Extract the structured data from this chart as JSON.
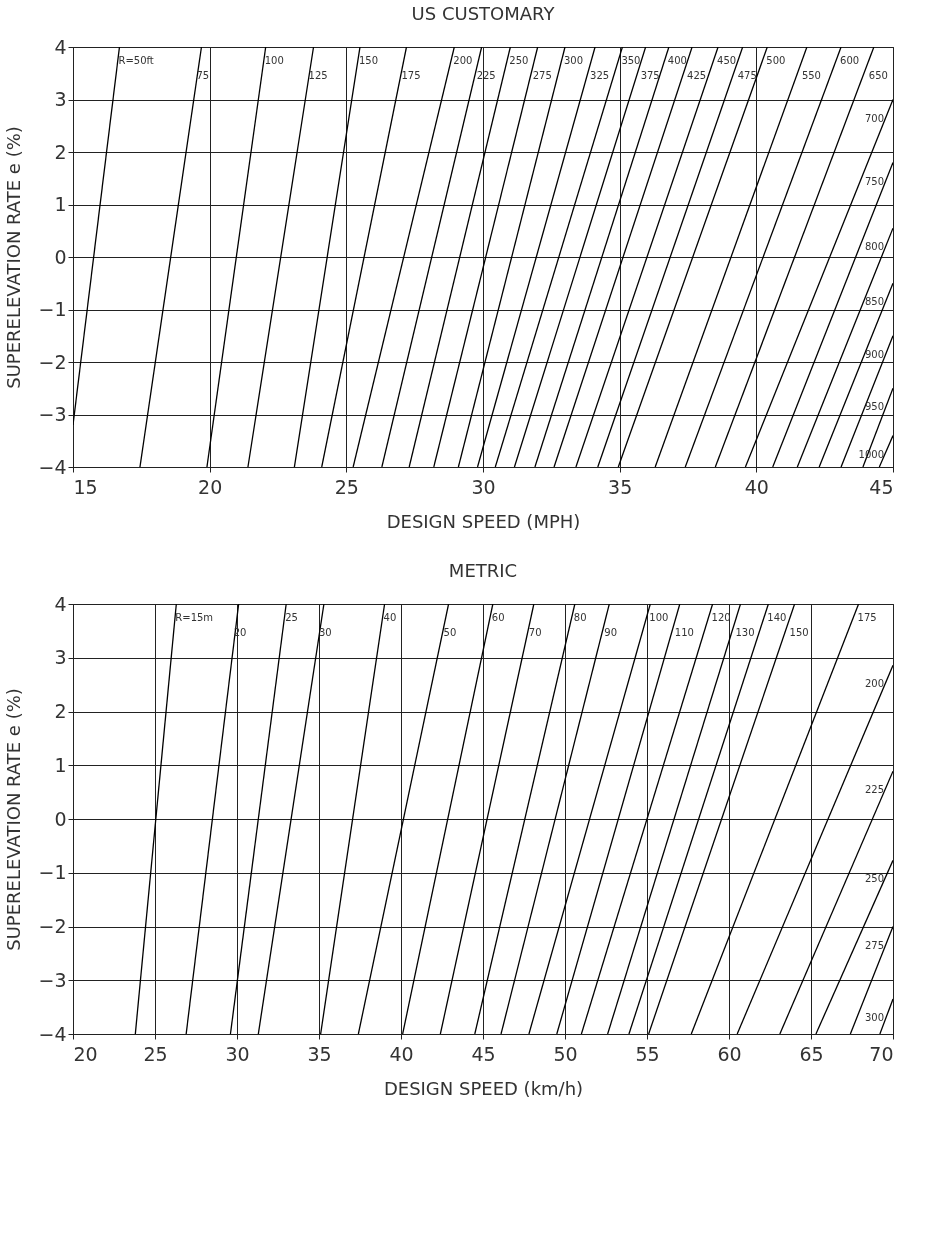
{
  "chart_data": [
    {
      "type": "line",
      "title": "US CUSTOMARY",
      "xlabel": "DESIGN SPEED (MPH)",
      "ylabel": "SUPERELEVATION RATE e (%)",
      "xlim": [
        15,
        45
      ],
      "ylim": [
        -4,
        4
      ],
      "xticks": [
        15,
        20,
        25,
        30,
        35,
        40,
        45
      ],
      "yticks": [
        -4,
        -3,
        -2,
        -1,
        0,
        1,
        2,
        3,
        4
      ],
      "grid": true,
      "legend": false,
      "marker": "none",
      "line_style": "solid",
      "series": [
        {
          "name": "R=50ft",
          "color": "#000000",
          "x": [
            15,
            16.7
          ],
          "values": [
            -3.2,
            4
          ]
        },
        {
          "name": "75",
          "color": "#000000",
          "x": [
            17.45,
            19.7
          ],
          "values": [
            -4,
            4
          ]
        },
        {
          "name": "100",
          "color": "#000000",
          "x": [
            19.9,
            22.05
          ],
          "values": [
            -4,
            4
          ]
        },
        {
          "name": "125",
          "color": "#000000",
          "x": [
            21.4,
            23.8
          ],
          "values": [
            -4,
            4
          ]
        },
        {
          "name": "150",
          "color": "#000000",
          "x": [
            23.1,
            25.5
          ],
          "values": [
            -4,
            4
          ]
        },
        {
          "name": "175",
          "color": "#000000",
          "x": [
            24.1,
            27.2
          ],
          "values": [
            -4,
            4
          ]
        },
        {
          "name": "200",
          "color": "#000000",
          "x": [
            25.25,
            28.95
          ],
          "values": [
            -4,
            4
          ]
        },
        {
          "name": "225",
          "color": "#000000",
          "x": [
            26.3,
            29.95
          ],
          "values": [
            -4,
            4
          ]
        },
        {
          "name": "250",
          "color": "#000000",
          "x": [
            27.3,
            31.0
          ],
          "values": [
            -4,
            4
          ]
        },
        {
          "name": "275",
          "color": "#000000",
          "x": [
            28.2,
            32.0
          ],
          "values": [
            -4,
            4
          ]
        },
        {
          "name": "300",
          "color": "#000000",
          "x": [
            29.1,
            33.0
          ],
          "values": [
            -4,
            4
          ]
        },
        {
          "name": "325",
          "color": "#000000",
          "x": [
            29.8,
            34.1
          ],
          "values": [
            -4,
            4
          ]
        },
        {
          "name": "350",
          "color": "#000000",
          "x": [
            30.45,
            35.1
          ],
          "values": [
            -4,
            4
          ]
        },
        {
          "name": "375",
          "color": "#000000",
          "x": [
            31.15,
            35.95
          ],
          "values": [
            -4,
            4
          ]
        },
        {
          "name": "400",
          "color": "#000000",
          "x": [
            31.9,
            36.8
          ],
          "values": [
            -4,
            4
          ]
        },
        {
          "name": "425",
          "color": "#000000",
          "x": [
            32.6,
            37.65
          ],
          "values": [
            -4,
            4
          ]
        },
        {
          "name": "450",
          "color": "#000000",
          "x": [
            33.4,
            38.6
          ],
          "values": [
            -4,
            4
          ]
        },
        {
          "name": "475",
          "color": "#000000",
          "x": [
            34.2,
            39.5
          ],
          "values": [
            -4,
            4
          ]
        },
        {
          "name": "500",
          "color": "#000000",
          "x": [
            34.95,
            40.4
          ],
          "values": [
            -4,
            4
          ]
        },
        {
          "name": "550",
          "color": "#000000",
          "x": [
            36.3,
            41.85
          ],
          "values": [
            -4,
            4
          ]
        },
        {
          "name": "600",
          "color": "#000000",
          "x": [
            37.4,
            43.1
          ],
          "values": [
            -4,
            4
          ]
        },
        {
          "name": "650",
          "color": "#000000",
          "x": [
            38.5,
            44.3
          ],
          "values": [
            -4,
            4
          ]
        },
        {
          "name": "700",
          "color": "#000000",
          "x": [
            39.6,
            45
          ],
          "values": [
            -4,
            3.0
          ]
        },
        {
          "name": "750",
          "color": "#000000",
          "x": [
            40.6,
            45
          ],
          "values": [
            -4,
            1.8
          ]
        },
        {
          "name": "800",
          "color": "#000000",
          "x": [
            41.5,
            45
          ],
          "values": [
            -4,
            0.55
          ]
        },
        {
          "name": "850",
          "color": "#000000",
          "x": [
            42.3,
            45
          ],
          "values": [
            -4,
            -0.5
          ]
        },
        {
          "name": "900",
          "color": "#000000",
          "x": [
            43.1,
            45
          ],
          "values": [
            -4,
            -1.5
          ]
        },
        {
          "name": "950",
          "color": "#000000",
          "x": [
            43.9,
            45
          ],
          "values": [
            -4,
            -2.5
          ]
        },
        {
          "name": "1000",
          "color": "#000000",
          "x": [
            44.5,
            45
          ],
          "values": [
            -4,
            -3.4
          ]
        }
      ]
    },
    {
      "type": "line",
      "title": "METRIC",
      "xlabel": "DESIGN SPEED (km/h)",
      "ylabel": "SUPERELEVATION RATE e (%)",
      "xlim": [
        20,
        70
      ],
      "ylim": [
        -4,
        4
      ],
      "xticks": [
        20,
        25,
        30,
        35,
        40,
        45,
        50,
        55,
        60,
        65,
        70
      ],
      "yticks": [
        -4,
        -3,
        -2,
        -1,
        0,
        1,
        2,
        3,
        4
      ],
      "grid": true,
      "legend": false,
      "marker": "none",
      "line_style": "solid",
      "series": [
        {
          "name": "R=15m",
          "color": "#000000",
          "x": [
            23.8,
            26.3
          ],
          "values": [
            -4,
            4
          ]
        },
        {
          "name": "20",
          "color": "#000000",
          "x": [
            26.9,
            30.1
          ],
          "values": [
            -4,
            4
          ]
        },
        {
          "name": "25",
          "color": "#000000",
          "x": [
            29.6,
            33.0
          ],
          "values": [
            -4,
            4
          ]
        },
        {
          "name": "30",
          "color": "#000000",
          "x": [
            31.3,
            35.3
          ],
          "values": [
            -4,
            4
          ]
        },
        {
          "name": "40",
          "color": "#000000",
          "x": [
            35.1,
            39.0
          ],
          "values": [
            -4,
            4
          ]
        },
        {
          "name": "50",
          "color": "#000000",
          "x": [
            37.4,
            42.9
          ],
          "values": [
            -4,
            4
          ]
        },
        {
          "name": "60",
          "color": "#000000",
          "x": [
            40.1,
            45.6
          ],
          "values": [
            -4,
            4
          ]
        },
        {
          "name": "70",
          "color": "#000000",
          "x": [
            42.4,
            48.1
          ],
          "values": [
            -4,
            4
          ]
        },
        {
          "name": "80",
          "color": "#000000",
          "x": [
            44.5,
            50.6
          ],
          "values": [
            -4,
            4
          ]
        },
        {
          "name": "90",
          "color": "#000000",
          "x": [
            46.1,
            52.7
          ],
          "values": [
            -4,
            4
          ]
        },
        {
          "name": "100",
          "color": "#000000",
          "x": [
            47.8,
            55.2
          ],
          "values": [
            -4,
            4
          ]
        },
        {
          "name": "110",
          "color": "#000000",
          "x": [
            49.5,
            57.0
          ],
          "values": [
            -4,
            4
          ]
        },
        {
          "name": "120",
          "color": "#000000",
          "x": [
            51.0,
            59.0
          ],
          "values": [
            -4,
            4
          ]
        },
        {
          "name": "130",
          "color": "#000000",
          "x": [
            52.6,
            60.7
          ],
          "values": [
            -4,
            4
          ]
        },
        {
          "name": "140",
          "color": "#000000",
          "x": [
            53.9,
            62.4
          ],
          "values": [
            -4,
            4
          ]
        },
        {
          "name": "150",
          "color": "#000000",
          "x": [
            55.1,
            64.0
          ],
          "values": [
            -4,
            4
          ]
        },
        {
          "name": "175",
          "color": "#000000",
          "x": [
            57.7,
            67.9
          ],
          "values": [
            -4,
            4
          ]
        },
        {
          "name": "200",
          "color": "#000000",
          "x": [
            60.5,
            70
          ],
          "values": [
            -4,
            2.86
          ]
        },
        {
          "name": "225",
          "color": "#000000",
          "x": [
            63.1,
            70
          ],
          "values": [
            -4,
            0.89
          ]
        },
        {
          "name": "250",
          "color": "#000000",
          "x": [
            65.3,
            70
          ],
          "values": [
            -4,
            -0.77
          ]
        },
        {
          "name": "275",
          "color": "#000000",
          "x": [
            67.4,
            70
          ],
          "values": [
            -4,
            -2.0
          ]
        },
        {
          "name": "300",
          "color": "#000000",
          "x": [
            69.2,
            70
          ],
          "values": [
            -4,
            -3.35
          ]
        }
      ]
    }
  ]
}
